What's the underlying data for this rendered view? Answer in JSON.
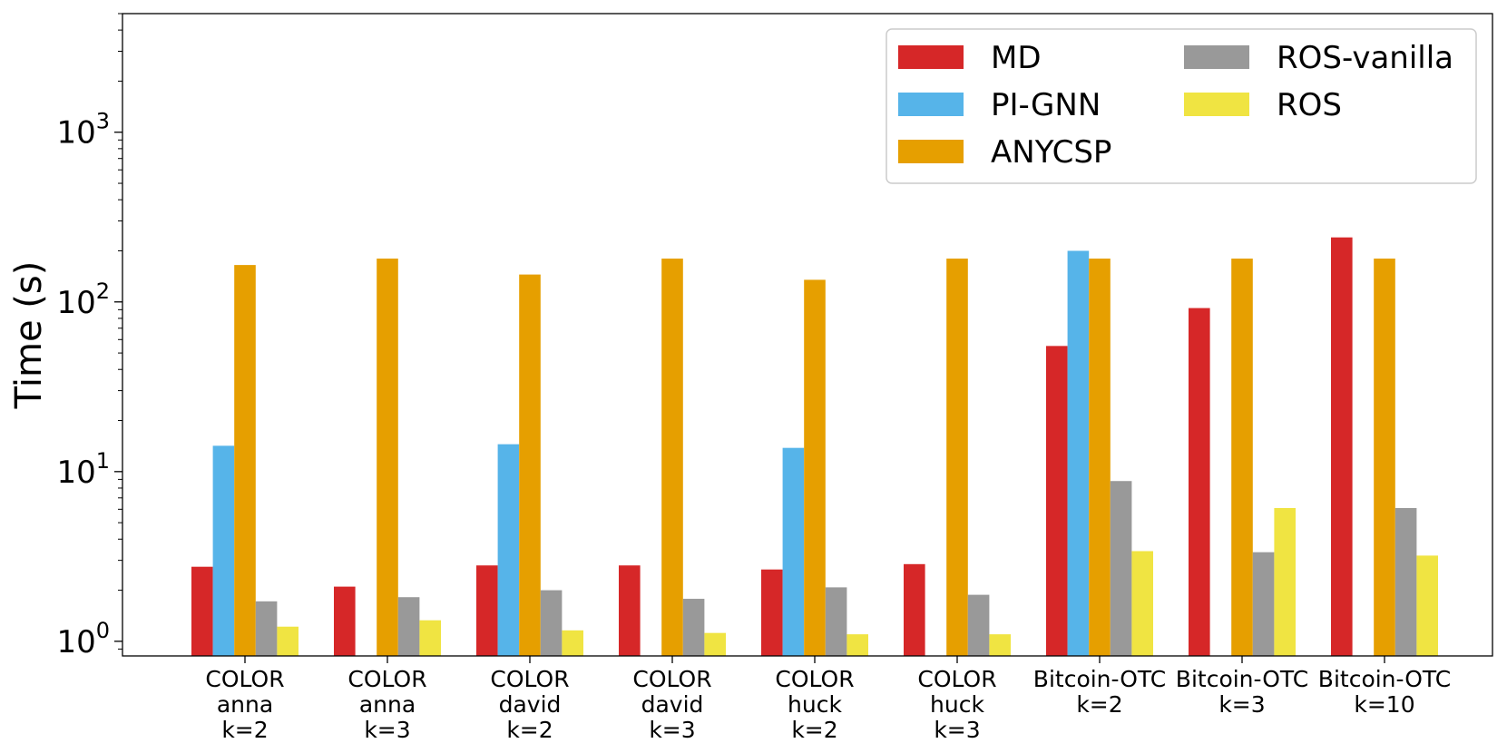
{
  "chart_data": {
    "type": "bar",
    "ylabel": "Time (s)",
    "xlabel": "",
    "yscale": "log",
    "ylim": [
      0.82,
      5000
    ],
    "yticks": [
      {
        "value": 1,
        "base": "10",
        "exp": "0"
      },
      {
        "value": 10,
        "base": "10",
        "exp": "1"
      },
      {
        "value": 100,
        "base": "10",
        "exp": "2"
      },
      {
        "value": 1000,
        "base": "10",
        "exp": "3"
      }
    ],
    "categories": [
      [
        "COLOR",
        "anna",
        "k=2"
      ],
      [
        "COLOR",
        "anna",
        "k=3"
      ],
      [
        "COLOR",
        "david",
        "k=2"
      ],
      [
        "COLOR",
        "david",
        "k=3"
      ],
      [
        "COLOR",
        "huck",
        "k=2"
      ],
      [
        "COLOR",
        "huck",
        "k=3"
      ],
      [
        "Bitcoin-OTC",
        "k=2"
      ],
      [
        "Bitcoin-OTC",
        "k=3"
      ],
      [
        "Bitcoin-OTC",
        "k=10"
      ]
    ],
    "series": [
      {
        "name": "MD",
        "color": "#d62728",
        "values": [
          2.75,
          2.1,
          2.8,
          2.8,
          2.65,
          2.85,
          55,
          92,
          240
        ]
      },
      {
        "name": "PI-GNN",
        "color": "#56b4e9",
        "values": [
          14.2,
          null,
          14.5,
          null,
          13.8,
          null,
          200,
          null,
          null
        ]
      },
      {
        "name": "ANYCSP",
        "color": "#e69f00",
        "values": [
          165,
          180,
          145,
          180,
          135,
          180,
          180,
          180,
          180
        ]
      },
      {
        "name": "ROS-vanilla",
        "color": "#999999",
        "values": [
          1.72,
          1.82,
          2.0,
          1.78,
          2.08,
          1.88,
          8.8,
          3.35,
          6.1
        ]
      },
      {
        "name": "ROS",
        "color": "#f0e442",
        "values": [
          1.22,
          1.33,
          1.16,
          1.12,
          1.1,
          1.1,
          3.4,
          6.1,
          3.2
        ]
      }
    ],
    "legend": {
      "placement": "top-right",
      "columns": 2
    },
    "grid": false
  }
}
